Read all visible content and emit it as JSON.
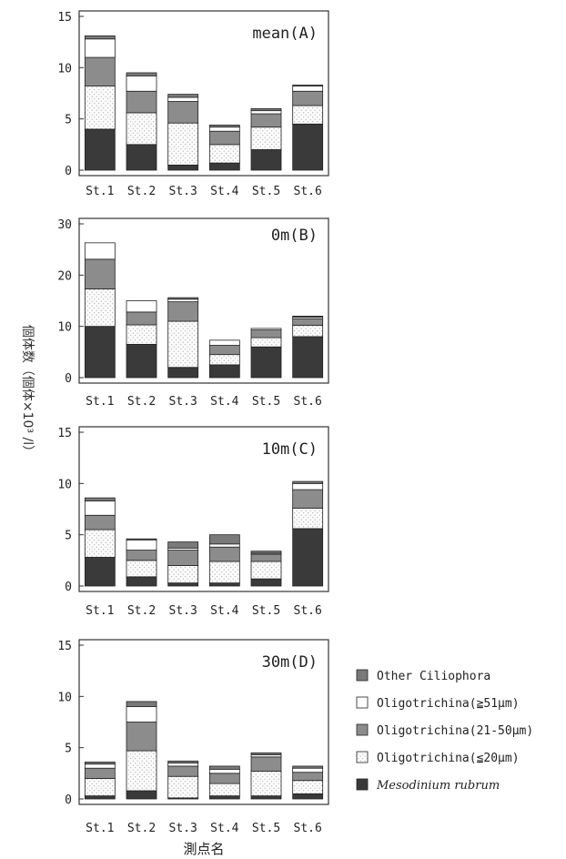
{
  "colors": {
    "Mesodinium rubrum": "#3a3a3a",
    "Oligotrichina(≦20μm)": "dotted",
    "Oligotrichina(21-50μm)": "#8c8c8c",
    "Oligotrichina(≧51μm)": "#ffffff",
    "Other Ciliophora": "#7a7a7a"
  },
  "chart_data": [
    {
      "type": "bar",
      "stacked": true,
      "title": "mean(A)",
      "categories": [
        "St.1",
        "St.2",
        "St.3",
        "St.4",
        "St.5",
        "St.6"
      ],
      "ylim": [
        0,
        15
      ],
      "yticks": [
        0,
        5,
        10,
        15
      ],
      "series": [
        {
          "name": "Mesodinium rubrum",
          "values": [
            4.0,
            2.5,
            0.5,
            0.7,
            2.0,
            4.5
          ]
        },
        {
          "name": "Oligotrichina(≦20μm)",
          "values": [
            4.2,
            3.1,
            4.1,
            1.8,
            2.2,
            1.8
          ]
        },
        {
          "name": "Oligotrichina(21-50μm)",
          "values": [
            2.8,
            2.1,
            2.1,
            1.3,
            1.3,
            1.4
          ]
        },
        {
          "name": "Oligotrichina(≧51μm)",
          "values": [
            1.8,
            1.5,
            0.4,
            0.4,
            0.3,
            0.5
          ]
        },
        {
          "name": "Other Ciliophora",
          "values": [
            0.3,
            0.3,
            0.3,
            0.2,
            0.2,
            0.1
          ]
        }
      ]
    },
    {
      "type": "bar",
      "stacked": true,
      "title": "0m(B)",
      "categories": [
        "St.1",
        "St.2",
        "St.3",
        "St.4",
        "St.5",
        "St.6"
      ],
      "ylim": [
        0,
        30
      ],
      "yticks": [
        0,
        10,
        20,
        30
      ],
      "series": [
        {
          "name": "Mesodinium rubrum",
          "values": [
            10.0,
            6.5,
            2.0,
            2.5,
            6.0,
            8.0
          ]
        },
        {
          "name": "Oligotrichina(≦20μm)",
          "values": [
            7.3,
            3.8,
            9.0,
            2.0,
            1.8,
            2.2
          ]
        },
        {
          "name": "Oligotrichina(21-50μm)",
          "values": [
            5.8,
            2.5,
            3.8,
            1.8,
            1.5,
            1.3
          ]
        },
        {
          "name": "Oligotrichina(≧51μm)",
          "values": [
            3.2,
            2.2,
            0.5,
            1.0,
            0.3,
            0.3
          ]
        },
        {
          "name": "Other Ciliophora",
          "values": [
            0,
            0,
            0.3,
            0,
            0,
            0.2
          ]
        }
      ]
    },
    {
      "type": "bar",
      "stacked": true,
      "title": "10m(C)",
      "categories": [
        "St.1",
        "St.2",
        "St.3",
        "St.4",
        "St.5",
        "St.6"
      ],
      "ylim": [
        0,
        15
      ],
      "yticks": [
        0,
        5,
        10,
        15
      ],
      "series": [
        {
          "name": "Mesodinium rubrum",
          "values": [
            2.8,
            0.9,
            0.3,
            0.3,
            0.7,
            5.6
          ]
        },
        {
          "name": "Oligotrichina(≦20μm)",
          "values": [
            2.7,
            1.6,
            1.7,
            2.1,
            1.7,
            2.0
          ]
        },
        {
          "name": "Oligotrichina(21-50μm)",
          "values": [
            1.4,
            1.0,
            1.5,
            1.4,
            0.7,
            1.8
          ]
        },
        {
          "name": "Oligotrichina(≧51μm)",
          "values": [
            1.4,
            1.0,
            0.2,
            0.3,
            0.1,
            0.6
          ]
        },
        {
          "name": "Other Ciliophora",
          "values": [
            0.3,
            0.1,
            0.6,
            0.9,
            0.2,
            0.2
          ]
        }
      ]
    },
    {
      "type": "bar",
      "stacked": true,
      "title": "30m(D)",
      "categories": [
        "St.1",
        "St.2",
        "St.3",
        "St.4",
        "St.5",
        "St.6"
      ],
      "ylim": [
        0,
        15
      ],
      "yticks": [
        0,
        5,
        10,
        15
      ],
      "series": [
        {
          "name": "Mesodinium rubrum",
          "values": [
            0.3,
            0.8,
            0.1,
            0.3,
            0.3,
            0.5
          ]
        },
        {
          "name": "Oligotrichina(≦20μm)",
          "values": [
            1.7,
            3.9,
            2.1,
            1.2,
            2.4,
            1.3
          ]
        },
        {
          "name": "Oligotrichina(21-50μm)",
          "values": [
            1.0,
            2.8,
            1.0,
            1.0,
            1.4,
            0.8
          ]
        },
        {
          "name": "Oligotrichina(≧51μm)",
          "values": [
            0.4,
            1.5,
            0.3,
            0.4,
            0.2,
            0.4
          ]
        },
        {
          "name": "Other Ciliophora",
          "values": [
            0.2,
            0.5,
            0.2,
            0.3,
            0.2,
            0.2
          ]
        }
      ]
    }
  ],
  "ylabel": "個体数（個体×10³ /l）",
  "xlabel": "測点名",
  "legend": [
    "Other Ciliophora",
    "Oligotrichina(≧51μm)",
    "Oligotrichina(21-50μm)",
    "Oligotrichina(≦20μm)",
    "Mesodinium rubrum"
  ],
  "legend_placement": "right of bottom panel"
}
